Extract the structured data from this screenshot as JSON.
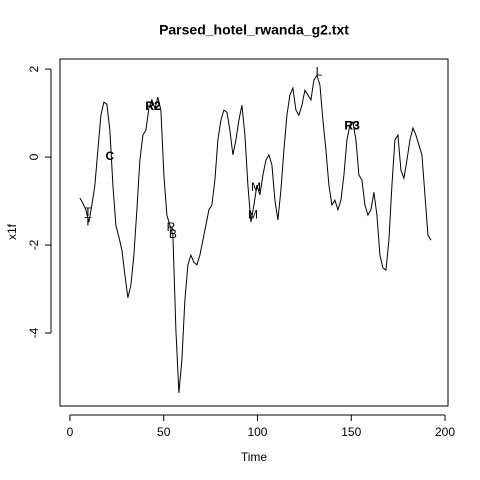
{
  "chart_data": {
    "type": "line",
    "title": "Parsed_hotel_rwanda_g2.txt",
    "x_label": "Time",
    "y_label": "x1f",
    "xlim": [
      -5.3,
      201.6
    ],
    "ylim": [
      -5.66,
      2.23
    ],
    "xticks": [
      0,
      50,
      100,
      150,
      200
    ],
    "yticks": [
      -4,
      -2,
      0,
      2
    ],
    "series": [
      {
        "color": "#000000",
        "x": [
          5.3,
          6.9,
          8.5,
          10.1,
          11.7,
          13.3,
          14.9,
          16.5,
          18.1,
          19.7,
          21.3,
          22.9,
          24.5,
          26.1,
          27.7,
          29.3,
          30.9,
          32.5,
          34.1,
          35.7,
          37.3,
          38.9,
          40.5,
          42.1,
          43.7,
          45.3,
          46.9,
          48.5,
          50.1,
          51.7,
          53.3,
          54.9,
          56.5,
          58.1,
          59.7,
          61.3,
          62.9,
          64.5,
          66.1,
          67.7,
          69.3,
          70.9,
          72.5,
          74.1,
          75.7,
          77.3,
          78.9,
          80.5,
          82.1,
          83.7,
          85.3,
          86.9,
          88.5,
          90.1,
          91.7,
          93.3,
          94.9,
          96.5,
          98.1,
          99.7,
          101.3,
          102.9,
          104.5,
          106.1,
          107.7,
          109.3,
          110.9,
          112.5,
          114.1,
          115.7,
          117.3,
          118.9,
          120.5,
          122.1,
          123.7,
          125.3,
          126.9,
          128.5,
          130.1,
          131.7,
          133.3,
          134.9,
          136.5,
          138.1,
          139.7,
          141.3,
          142.9,
          144.5,
          146.1,
          147.7,
          149.3,
          150.9,
          152.5,
          154.1,
          155.7,
          157.3,
          158.9,
          160.5,
          162.1,
          163.7,
          165.3,
          166.9,
          168.5,
          170.1,
          171.7,
          173.3,
          174.9,
          176.5,
          178.1,
          179.7,
          181.3,
          182.9,
          184.5,
          186.1,
          187.7,
          189.3,
          190.9,
          192.5
        ],
        "values": [
          -0.93,
          -1.05,
          -1.2,
          -1.48,
          -1.09,
          -0.64,
          0.16,
          0.95,
          1.25,
          1.2,
          0.61,
          -0.64,
          -1.55,
          -1.82,
          -2.11,
          -2.68,
          -3.2,
          -2.91,
          -2.23,
          -1.2,
          -0.07,
          0.5,
          0.61,
          1.11,
          1.3,
          1.11,
          1.36,
          1.07,
          -0.41,
          -1.32,
          -1.55,
          -1.77,
          -3.93,
          -5.36,
          -4.61,
          -3.25,
          -2.45,
          -2.23,
          -2.39,
          -2.45,
          -2.23,
          -1.89,
          -1.55,
          -1.2,
          -1.09,
          -0.52,
          0.39,
          0.84,
          1.07,
          1.02,
          0.61,
          0.05,
          0.39,
          0.84,
          1.18,
          0.5,
          -0.64,
          -1.48,
          -1.09,
          -0.64,
          -0.86,
          -0.41,
          -0.07,
          0.05,
          -0.18,
          -0.98,
          -1.43,
          -0.75,
          0.16,
          0.95,
          1.41,
          1.57,
          1.07,
          0.95,
          1.18,
          1.52,
          1.41,
          1.3,
          1.75,
          1.86,
          1.64,
          0.84,
          0.16,
          -0.64,
          -1.09,
          -0.98,
          -1.2,
          -0.98,
          -0.41,
          0.39,
          0.73,
          0.8,
          0.39,
          -0.41,
          -0.52,
          -1.09,
          -1.32,
          -1.2,
          -0.8,
          -1.32,
          -2.23,
          -2.52,
          -2.57,
          -1.89,
          -0.64,
          0.39,
          0.5,
          -0.3,
          -0.48,
          -0.07,
          0.39,
          0.66,
          0.5,
          0.27,
          0.05,
          -0.86,
          -1.77,
          -1.89
        ]
      }
    ],
    "annotations": [
      {
        "text": "T",
        "x": 9.6,
        "y": -1.48,
        "color": "#000000",
        "bold": false
      },
      {
        "text": "R2",
        "x": 44.3,
        "y": 1.14,
        "color": "#000000",
        "bold": true
      },
      {
        "text": "B",
        "x": 54.9,
        "y": -1.77,
        "color": "#000000",
        "bold": false
      },
      {
        "text": "M",
        "x": 99.2,
        "y": -0.7,
        "color": "#000000",
        "bold": false
      },
      {
        "text": "R3",
        "x": 150.4,
        "y": 0.7,
        "color": "#000000",
        "bold": true
      },
      {
        "text": "T",
        "x": 9.6,
        "y": -1.27,
        "color": "#dd2222",
        "bold": false
      },
      {
        "text": "C",
        "x": 21.3,
        "y": 0,
        "color": "#cc2222",
        "bold": true
      },
      {
        "text": "R2",
        "x": 44.3,
        "y": 1.14,
        "color": "#cc2222",
        "bold": true
      },
      {
        "text": "R",
        "x": 53.9,
        "y": -1.61,
        "color": "#dd2222",
        "bold": false
      },
      {
        "text": "M",
        "x": 97.6,
        "y": -1.32,
        "color": "#dd2222",
        "bold": false
      },
      {
        "text": "L",
        "x": 132.8,
        "y": 1.93,
        "color": "#dd2222",
        "bold": false
      },
      {
        "text": "R3",
        "x": 150.4,
        "y": 0.7,
        "color": "#cc2222",
        "bold": true
      }
    ]
  }
}
